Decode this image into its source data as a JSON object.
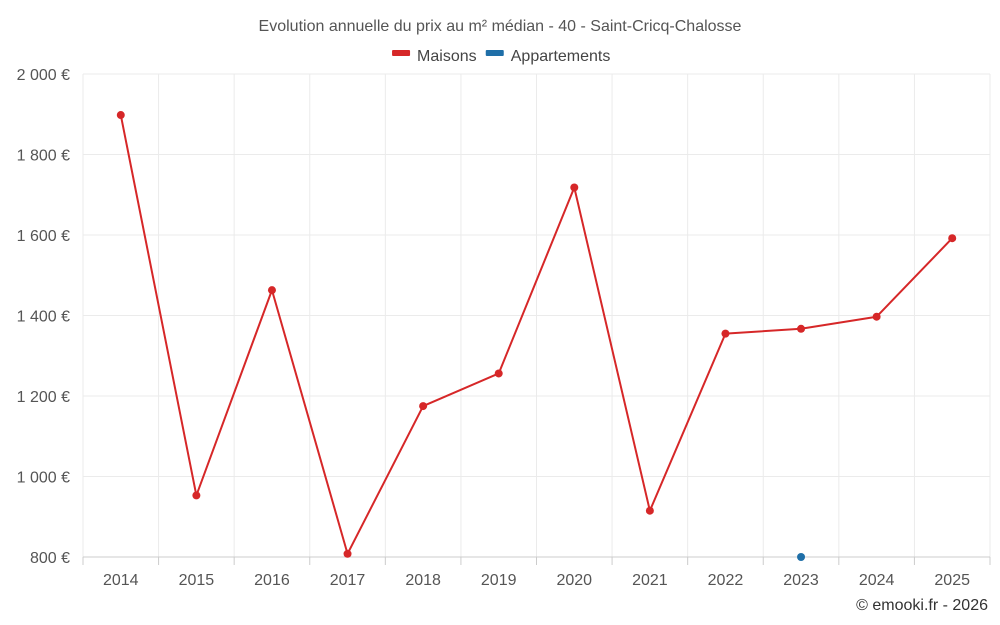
{
  "chart_data": {
    "type": "line",
    "title": "Evolution annuelle du prix au m² médian - 40 - Saint-Cricq-Chalosse",
    "xlabel": "",
    "ylabel": "",
    "categories": [
      "2014",
      "2015",
      "2016",
      "2017",
      "2018",
      "2019",
      "2020",
      "2021",
      "2022",
      "2023",
      "2024",
      "2025"
    ],
    "ylim": [
      800,
      2000
    ],
    "y_ticks": [
      800,
      1000,
      1200,
      1400,
      1600,
      1800,
      2000
    ],
    "y_tick_labels": [
      "800 €",
      "1 000 €",
      "1 200 €",
      "1 400 €",
      "1 600 €",
      "1 800 €",
      "2 000 €"
    ],
    "grid": true,
    "legend_position": "top-center",
    "series": [
      {
        "name": "Maisons",
        "color": "#d62728",
        "values": [
          1898,
          953,
          1463,
          808,
          1175,
          1256,
          1718,
          915,
          1355,
          1367,
          1397,
          1592
        ]
      },
      {
        "name": "Appartements",
        "color": "#1f6fa8",
        "values": [
          null,
          null,
          null,
          null,
          null,
          null,
          null,
          null,
          null,
          800,
          null,
          null
        ]
      }
    ]
  },
  "credit": "© emooki.fr - 2026"
}
